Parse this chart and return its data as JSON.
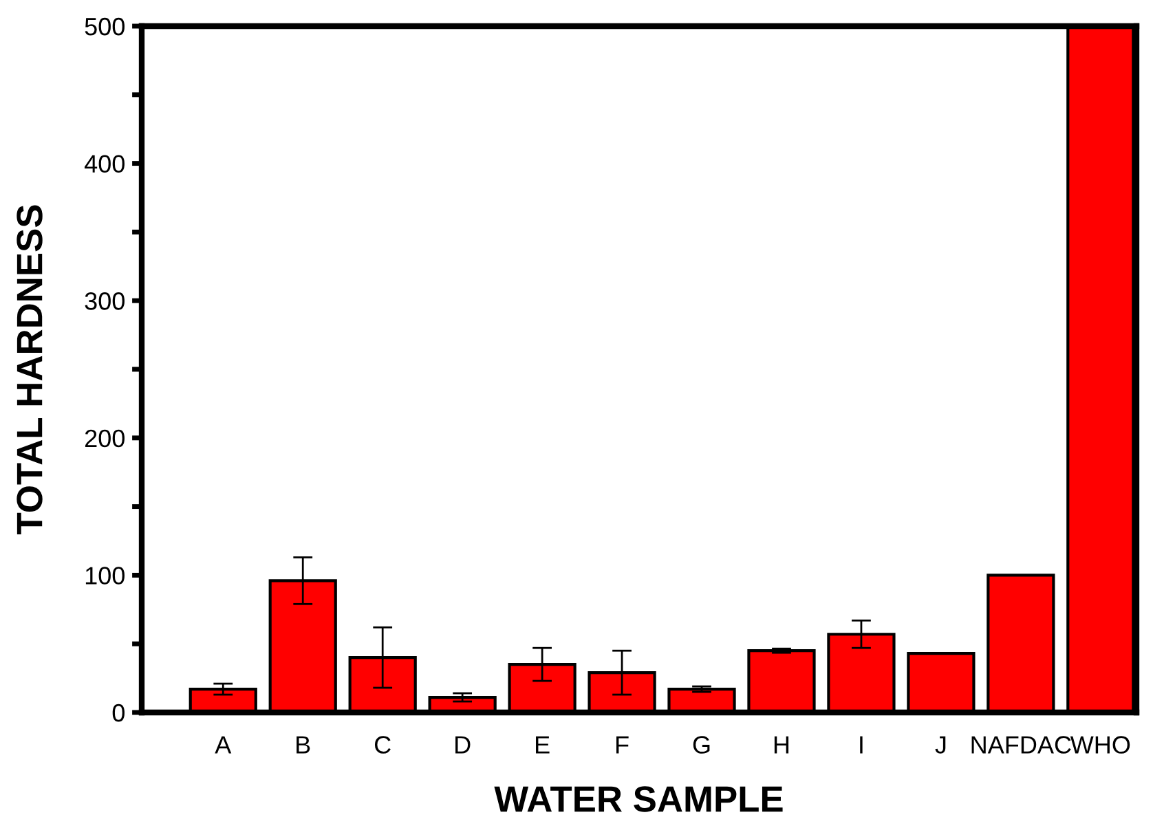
{
  "chart_data": {
    "type": "bar",
    "xlabel": "WATER SAMPLE",
    "ylabel": "TOTAL HARDNESS",
    "categories": [
      "A",
      "B",
      "C",
      "D",
      "E",
      "F",
      "G",
      "H",
      "I",
      "J",
      "NAFDAC",
      "WHO"
    ],
    "values": [
      17,
      96,
      40,
      11,
      35,
      29,
      17,
      45,
      57,
      43,
      100,
      500
    ],
    "errors": [
      4,
      17,
      22,
      3,
      12,
      16,
      2,
      1.5,
      10,
      null,
      null,
      null
    ],
    "color": "#ff0000",
    "ylim": [
      0,
      500
    ],
    "yticks": [
      0,
      {
        "value": 50,
        "label": null
      },
      100,
      {
        "value": 150,
        "label": null
      },
      200,
      {
        "value": 250,
        "label": null
      },
      300,
      {
        "value": 350,
        "label": null
      },
      400,
      {
        "value": 450,
        "label": null
      },
      500
    ],
    "grid": false,
    "legend": false
  }
}
